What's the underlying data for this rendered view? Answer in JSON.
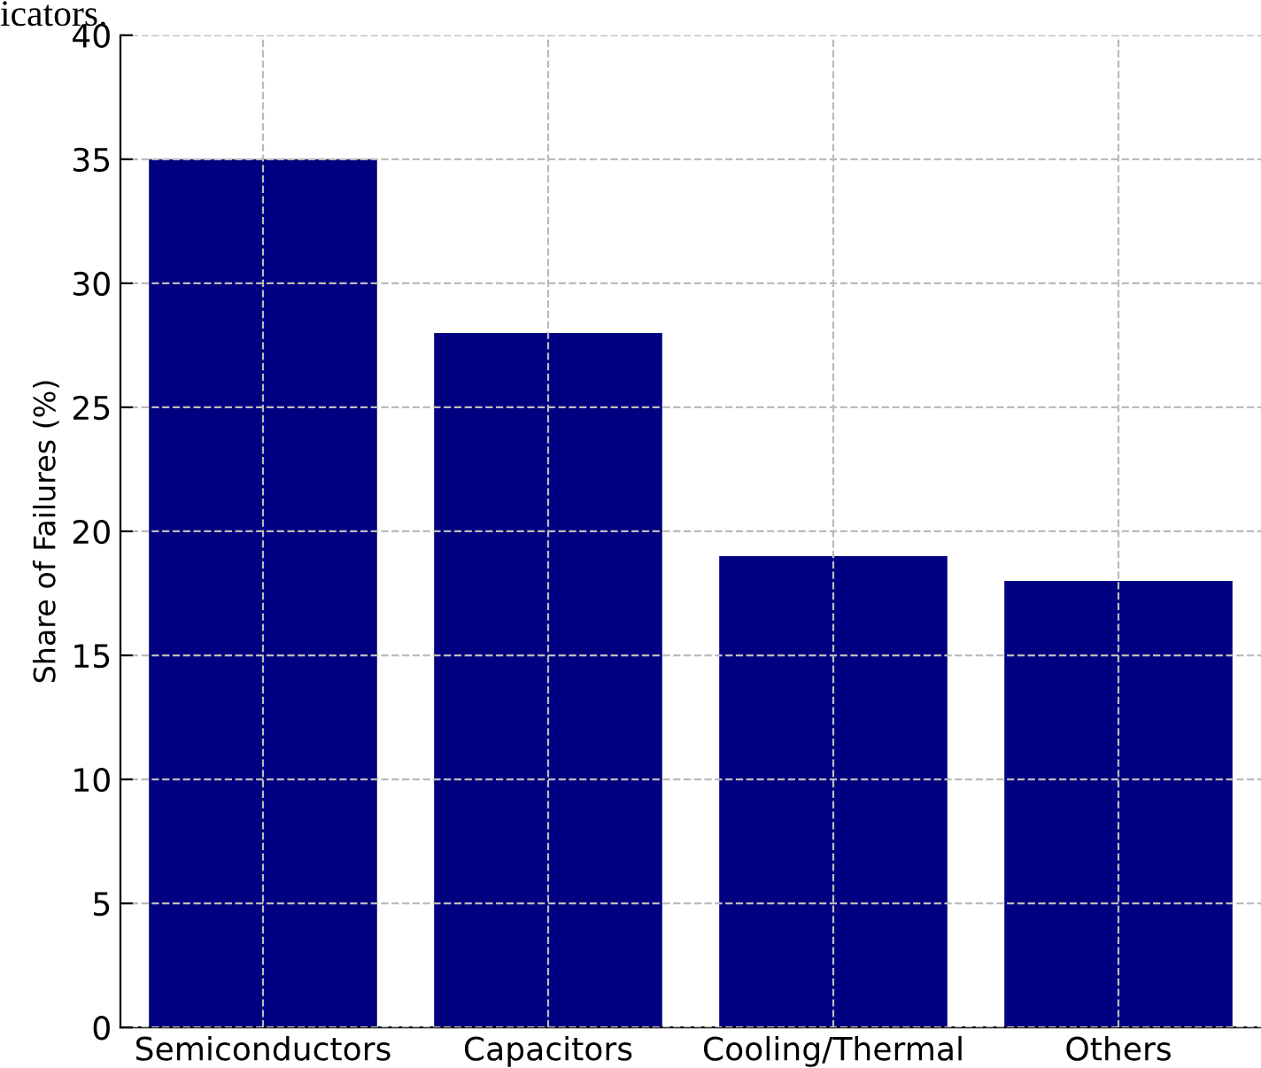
{
  "chart_data": {
    "type": "bar",
    "ylabel": "Share of Failures (%)",
    "categories": [
      "Semiconductors",
      "Capacitors",
      "Cooling/Thermal",
      "Others"
    ],
    "values": [
      35,
      28,
      19,
      18
    ],
    "color": "#000080",
    "ylim": [
      0,
      40
    ],
    "yticks": [
      0,
      5,
      10,
      15,
      20,
      25,
      30,
      35,
      40
    ],
    "grid": true,
    "annotations": [
      "icators."
    ]
  }
}
